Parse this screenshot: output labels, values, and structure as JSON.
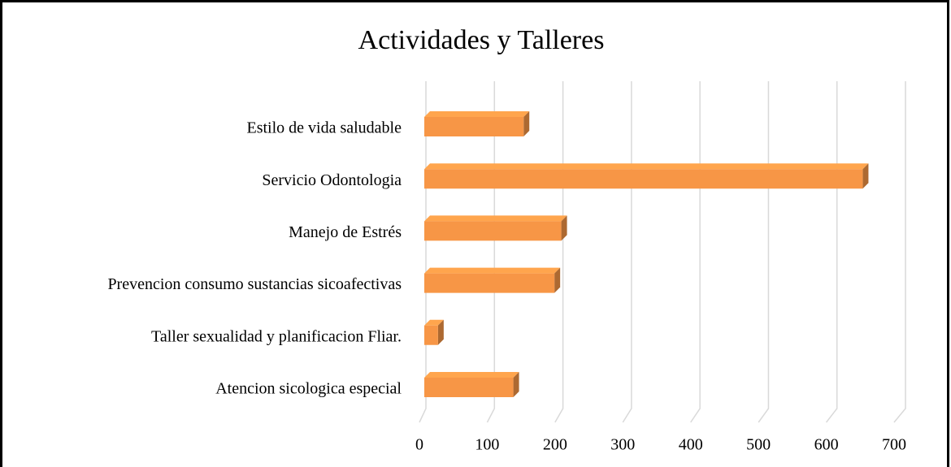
{
  "chart_data": {
    "type": "bar",
    "orientation": "horizontal",
    "title": "Actividades y Talleres",
    "categories": [
      "Estilo de vida saludable",
      "Servicio Odontologia",
      "Manejo de Estrés",
      "Prevencion consumo sustancias sicoafectivas",
      "Taller sexualidad y planificacion Fliar.",
      "Atencion sicologica especial"
    ],
    "values": [
      145,
      640,
      200,
      190,
      20,
      130
    ],
    "color": "#f79646",
    "xlim": [
      0,
      700
    ],
    "xticks": [
      0,
      100,
      200,
      300,
      400,
      500,
      600,
      700
    ],
    "grid": true
  }
}
